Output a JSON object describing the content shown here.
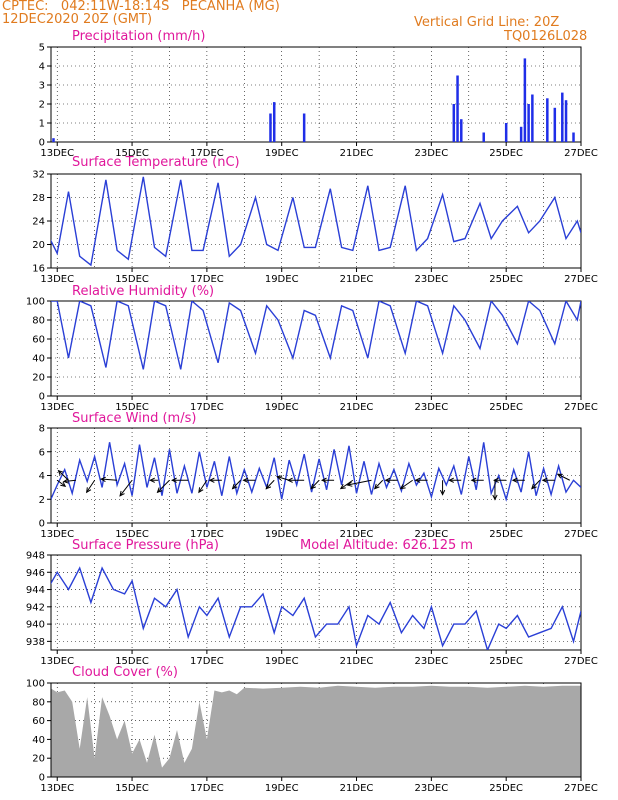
{
  "header": {
    "station": "CPTEC:   042:11W-18:14S   PECANHA (MG)",
    "init": "12DEC2020 20Z (GMT)",
    "grid_note": "Vertical Grid Line: 20Z",
    "code": "TQ0126L028"
  },
  "colors": {
    "header": "#e07b1f",
    "title": "#e0179b",
    "line": "#2a3fd6",
    "bar": "#1f2ee8",
    "cloud": "#a8a8a8"
  },
  "x_ticks": [
    "13DEC",
    "15DEC",
    "17DEC",
    "19DEC",
    "21DEC",
    "23DEC",
    "25DEC",
    "27DEC"
  ],
  "chart_data": [
    {
      "type": "bar",
      "title": "Precipitation (mm/h)",
      "ylim": [
        0,
        5
      ],
      "yticks": [
        "0",
        "1",
        "2",
        "3",
        "4",
        "5"
      ],
      "x": [
        12.9,
        18.7,
        18.8,
        19.6,
        23.6,
        23.7,
        23.8,
        24.4,
        25.0,
        25.4,
        25.5,
        25.6,
        25.7,
        26.1,
        26.3,
        26.5,
        26.6,
        26.8
      ],
      "values": [
        0.2,
        1.5,
        2.1,
        1.5,
        2.0,
        3.5,
        1.2,
        0.5,
        1.0,
        0.8,
        4.4,
        2.0,
        2.5,
        2.3,
        1.8,
        2.6,
        2.2,
        0.5
      ]
    },
    {
      "type": "line",
      "title": "Surface Temperature (nC)",
      "ylim": [
        16,
        32
      ],
      "yticks": [
        "16",
        "20",
        "24",
        "28",
        "32"
      ],
      "x": [
        12.8,
        13.0,
        13.3,
        13.6,
        13.9,
        14.3,
        14.6,
        14.9,
        15.3,
        15.6,
        15.9,
        16.3,
        16.6,
        16.9,
        17.3,
        17.6,
        17.9,
        18.3,
        18.6,
        18.9,
        19.3,
        19.6,
        19.9,
        20.3,
        20.6,
        20.9,
        21.3,
        21.6,
        21.9,
        22.3,
        22.6,
        22.9,
        23.3,
        23.6,
        23.9,
        24.3,
        24.6,
        24.9,
        25.3,
        25.6,
        25.9,
        26.3,
        26.6,
        26.9,
        27.0
      ],
      "values": [
        21,
        18.5,
        29,
        18,
        16.5,
        31,
        19,
        17.5,
        31.5,
        19.5,
        18,
        31,
        19,
        19,
        30.5,
        18,
        20,
        28,
        20,
        19,
        28,
        19.5,
        19.5,
        29.5,
        19.5,
        19,
        30,
        19,
        19.5,
        30,
        19,
        21,
        28.5,
        20.5,
        21,
        27,
        21,
        24,
        26.5,
        22,
        24,
        28,
        21,
        24,
        22
      ]
    },
    {
      "type": "line",
      "title": "Relative Humidity (%)",
      "ylim": [
        0,
        100
      ],
      "yticks": [
        "0",
        "20",
        "40",
        "60",
        "80",
        "100"
      ],
      "x": [
        12.8,
        13.0,
        13.3,
        13.6,
        13.9,
        14.3,
        14.6,
        14.9,
        15.3,
        15.6,
        15.9,
        16.3,
        16.6,
        16.9,
        17.3,
        17.6,
        17.9,
        18.3,
        18.6,
        18.9,
        19.3,
        19.6,
        19.9,
        20.3,
        20.6,
        20.9,
        21.3,
        21.6,
        21.9,
        22.3,
        22.6,
        22.9,
        23.3,
        23.6,
        23.9,
        24.3,
        24.6,
        24.9,
        25.3,
        25.6,
        25.9,
        26.3,
        26.6,
        26.9,
        27.0
      ],
      "values": [
        100,
        100,
        40,
        100,
        95,
        30,
        100,
        95,
        28,
        100,
        95,
        28,
        100,
        90,
        35,
        98,
        90,
        45,
        95,
        80,
        40,
        90,
        85,
        40,
        95,
        90,
        40,
        100,
        95,
        45,
        100,
        95,
        45,
        95,
        80,
        50,
        100,
        85,
        55,
        100,
        90,
        55,
        100,
        80,
        100
      ]
    },
    {
      "type": "line",
      "title": "Surface Wind (m/s)",
      "ylim": [
        0,
        8
      ],
      "yticks": [
        "0",
        "2",
        "4",
        "6",
        "8"
      ],
      "x": [
        12.8,
        13.0,
        13.2,
        13.4,
        13.6,
        13.8,
        14.0,
        14.2,
        14.4,
        14.6,
        14.8,
        15.0,
        15.2,
        15.4,
        15.6,
        15.8,
        16.0,
        16.2,
        16.4,
        16.6,
        16.8,
        17.0,
        17.2,
        17.4,
        17.6,
        17.8,
        18.0,
        18.2,
        18.4,
        18.6,
        18.8,
        19.0,
        19.2,
        19.4,
        19.6,
        19.8,
        20.0,
        20.2,
        20.4,
        20.6,
        20.8,
        21.0,
        21.2,
        21.4,
        21.6,
        21.8,
        22.0,
        22.2,
        22.4,
        22.6,
        22.8,
        23.0,
        23.2,
        23.4,
        23.6,
        23.8,
        24.0,
        24.2,
        24.4,
        24.6,
        24.8,
        25.0,
        25.2,
        25.4,
        25.6,
        25.8,
        26.0,
        26.2,
        26.4,
        26.6,
        26.8,
        27.0
      ],
      "values": [
        1.8,
        3.2,
        4.5,
        2.5,
        5.3,
        3.5,
        5.6,
        3.0,
        6.8,
        3.2,
        5.0,
        2.3,
        6.6,
        3.0,
        5.5,
        2.3,
        6.2,
        2.5,
        4.8,
        2.5,
        6.0,
        3.0,
        5.2,
        2.3,
        5.6,
        2.5,
        4.5,
        2.6,
        4.6,
        3.0,
        5.5,
        2.0,
        5.3,
        3.2,
        5.8,
        2.6,
        5.4,
        2.8,
        6.2,
        3.2,
        6.5,
        2.5,
        5.2,
        2.4,
        5.0,
        3.0,
        4.5,
        2.7,
        5.0,
        3.2,
        4.2,
        2.2,
        4.6,
        3.2,
        4.8,
        2.4,
        5.6,
        2.8,
        6.8,
        2.5,
        4.0,
        2.0,
        4.5,
        2.6,
        6.0,
        2.3,
        4.6,
        2.4,
        4.8,
        2.6,
        3.6,
        3.0
      ],
      "arrows": [
        {
          "x": 13.3,
          "dx": -0.25,
          "dy": -0.8
        },
        {
          "x": 13.0,
          "dx": 0.2,
          "dy": 0.5
        },
        {
          "x": 13.5,
          "dx": -0.3,
          "dy": 0.1
        },
        {
          "x": 14.0,
          "dx": -0.2,
          "dy": 1.0
        },
        {
          "x": 14.6,
          "dx": -0.4,
          "dy": -0.1
        },
        {
          "x": 15.0,
          "dx": -0.3,
          "dy": 1.3
        },
        {
          "x": 15.7,
          "dx": -0.2,
          "dy": 0.0
        },
        {
          "x": 16.0,
          "dx": -0.3,
          "dy": 1.0
        },
        {
          "x": 16.5,
          "dx": -0.4,
          "dy": 0.0
        },
        {
          "x": 17.0,
          "dx": -0.2,
          "dy": 1.0
        },
        {
          "x": 17.4,
          "dx": -0.3,
          "dy": 0.0
        },
        {
          "x": 17.9,
          "dx": -0.2,
          "dy": 0.7
        },
        {
          "x": 18.3,
          "dx": -0.3,
          "dy": 0.0
        },
        {
          "x": 18.8,
          "dx": -0.2,
          "dy": 0.7
        },
        {
          "x": 19.2,
          "dx": -0.3,
          "dy": -0.3
        },
        {
          "x": 19.6,
          "dx": -0.4,
          "dy": 0.0
        },
        {
          "x": 20.0,
          "dx": -0.2,
          "dy": 0.7
        },
        {
          "x": 20.4,
          "dx": -0.3,
          "dy": 0.0
        },
        {
          "x": 20.9,
          "dx": -0.3,
          "dy": 0.7
        },
        {
          "x": 21.4,
          "dx": -0.6,
          "dy": 0.4
        },
        {
          "x": 21.7,
          "dx": -0.2,
          "dy": 0.7
        },
        {
          "x": 22.1,
          "dx": -0.3,
          "dy": 0.0
        },
        {
          "x": 22.5,
          "dx": -0.3,
          "dy": 0.7
        },
        {
          "x": 22.9,
          "dx": -0.3,
          "dy": 0.0
        },
        {
          "x": 23.3,
          "dx": 0.0,
          "dy": 1.2
        },
        {
          "x": 23.8,
          "dx": -0.3,
          "dy": 0.0
        },
        {
          "x": 24.4,
          "dx": -0.3,
          "dy": 0.0
        },
        {
          "x": 24.7,
          "dx": 0.0,
          "dy": 1.6
        },
        {
          "x": 25.0,
          "dx": -0.3,
          "dy": 0.0
        },
        {
          "x": 25.5,
          "dx": -0.3,
          "dy": 0.0
        },
        {
          "x": 25.9,
          "dx": -0.2,
          "dy": 0.7
        },
        {
          "x": 26.3,
          "dx": -0.3,
          "dy": 0.0
        },
        {
          "x": 26.7,
          "dx": -0.3,
          "dy": -0.5
        }
      ]
    },
    {
      "type": "line",
      "title": "Surface Pressure (hPa)",
      "model_altitude": "Model Altitude: 626.125 m",
      "ylim": [
        937,
        948
      ],
      "yticks": [
        "938",
        "940",
        "942",
        "944",
        "946",
        "948"
      ],
      "x": [
        12.8,
        13.0,
        13.3,
        13.6,
        13.9,
        14.2,
        14.5,
        14.8,
        15.0,
        15.3,
        15.6,
        15.9,
        16.2,
        16.5,
        16.8,
        17.0,
        17.3,
        17.6,
        17.9,
        18.2,
        18.5,
        18.8,
        19.0,
        19.3,
        19.6,
        19.9,
        20.2,
        20.5,
        20.8,
        21.0,
        21.3,
        21.6,
        21.9,
        22.2,
        22.5,
        22.8,
        23.0,
        23.3,
        23.6,
        23.9,
        24.2,
        24.5,
        24.8,
        25.0,
        25.3,
        25.6,
        25.9,
        26.2,
        26.5,
        26.8,
        27.0
      ],
      "values": [
        944.5,
        946,
        944,
        946.5,
        942.5,
        946.5,
        944,
        943.5,
        945,
        939.5,
        943,
        942,
        944,
        938.5,
        942,
        941,
        943,
        938.5,
        942,
        942,
        943.5,
        939,
        942,
        941,
        943,
        938.5,
        940,
        940,
        942,
        937.5,
        941,
        940,
        942.5,
        939,
        941,
        939.5,
        942,
        937.5,
        940,
        940,
        941.5,
        937,
        940,
        939.5,
        941,
        938.5,
        939,
        939.5,
        942,
        938,
        941.5
      ]
    },
    {
      "type": "area",
      "title": "Cloud Cover (%)",
      "ylim": [
        0,
        100
      ],
      "yticks": [
        "0",
        "20",
        "40",
        "60",
        "80",
        "100"
      ],
      "x": [
        12.8,
        13.0,
        13.2,
        13.4,
        13.6,
        13.8,
        14.0,
        14.2,
        14.4,
        14.6,
        14.8,
        15.0,
        15.2,
        15.4,
        15.6,
        15.8,
        16.0,
        16.2,
        16.4,
        16.6,
        16.8,
        17.0,
        17.2,
        17.4,
        17.6,
        17.8,
        18.0,
        18.5,
        19.0,
        19.5,
        20.0,
        20.5,
        21.0,
        21.5,
        22.0,
        22.5,
        23.0,
        23.5,
        24.0,
        24.5,
        25.0,
        25.5,
        26.0,
        26.5,
        27.0
      ],
      "values": [
        95,
        90,
        92,
        80,
        30,
        85,
        20,
        85,
        65,
        40,
        60,
        25,
        40,
        15,
        45,
        10,
        20,
        50,
        15,
        30,
        80,
        40,
        92,
        90,
        92,
        88,
        95,
        94,
        95,
        96,
        95,
        97,
        96,
        95,
        96,
        96,
        97,
        96,
        96,
        95,
        96,
        97,
        96,
        97,
        97
      ]
    }
  ]
}
